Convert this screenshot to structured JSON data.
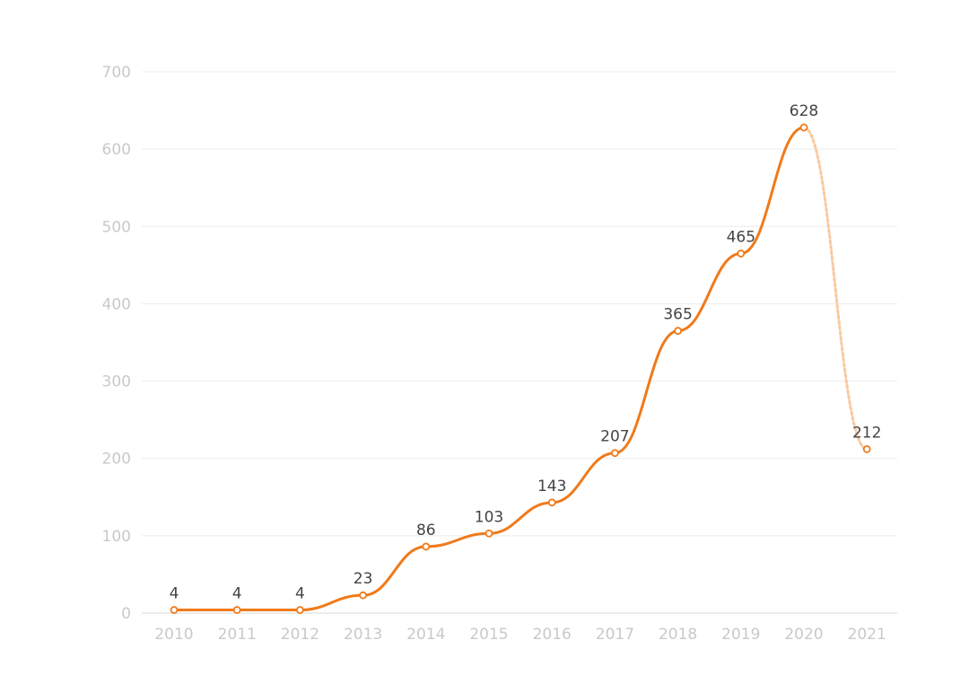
{
  "chart_data": {
    "type": "line",
    "title": "",
    "xlabel": "",
    "ylabel": "",
    "categories": [
      "2010",
      "2011",
      "2012",
      "2013",
      "2014",
      "2015",
      "2016",
      "2017",
      "2018",
      "2019",
      "2020",
      "2021"
    ],
    "series": [
      {
        "values": [
          4,
          4,
          4,
          23,
          86,
          103,
          143,
          207,
          365,
          465,
          628,
          212
        ]
      }
    ],
    "projected_from_index": 10,
    "ylim": [
      0,
      700
    ],
    "yticks": [
      "0",
      "100",
      "200",
      "300",
      "400",
      "500",
      "600",
      "700"
    ],
    "grid": true,
    "legend": "none",
    "colors": {
      "line": "#f07a1a",
      "projected": "#f9c9a0",
      "marker_fill": "#ffffff",
      "grid": "#ececec",
      "tick_text": "#c9c9c9",
      "label_text": "#444444"
    }
  }
}
